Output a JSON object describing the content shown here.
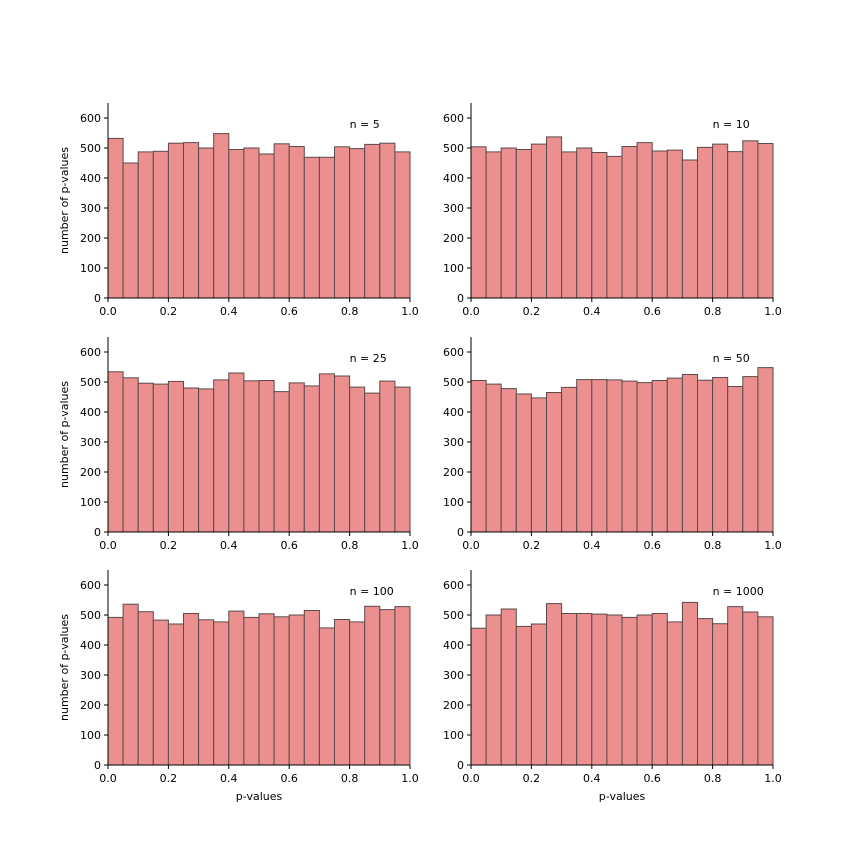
{
  "colors": {
    "bar_fill": "#ec8f8f",
    "bar_edge": "#5a4a4a"
  },
  "chart_data": [
    {
      "type": "bar",
      "annotation": "n = 5",
      "xlabel": "",
      "ylabel": "number of p-values",
      "xlim": [
        0,
        1
      ],
      "ylim": [
        0,
        650
      ],
      "xticks": [
        "0.0",
        "0.2",
        "0.4",
        "0.6",
        "0.8",
        "1.0"
      ],
      "yticks": [
        "0",
        "100",
        "200",
        "300",
        "400",
        "500",
        "600"
      ],
      "bin_edges": [
        0,
        0.05,
        0.1,
        0.15,
        0.2,
        0.25,
        0.3,
        0.35,
        0.4,
        0.45,
        0.5,
        0.55,
        0.6,
        0.65,
        0.7,
        0.75,
        0.8,
        0.85,
        0.9,
        0.95,
        1.0
      ],
      "values": [
        532,
        450,
        487,
        489,
        516,
        518,
        500,
        548,
        495,
        500,
        480,
        514,
        505,
        469,
        469,
        504,
        498,
        512,
        516,
        487
      ]
    },
    {
      "type": "bar",
      "annotation": "n = 10",
      "xlabel": "",
      "ylabel": "",
      "xlim": [
        0,
        1
      ],
      "ylim": [
        0,
        650
      ],
      "xticks": [
        "0.0",
        "0.2",
        "0.4",
        "0.6",
        "0.8",
        "1.0"
      ],
      "yticks": [
        "0",
        "100",
        "200",
        "300",
        "400",
        "500",
        "600"
      ],
      "bin_edges": [
        0,
        0.05,
        0.1,
        0.15,
        0.2,
        0.25,
        0.3,
        0.35,
        0.4,
        0.45,
        0.5,
        0.55,
        0.6,
        0.65,
        0.7,
        0.75,
        0.8,
        0.85,
        0.9,
        0.95,
        1.0
      ],
      "values": [
        504,
        487,
        500,
        495,
        513,
        537,
        487,
        500,
        485,
        472,
        505,
        518,
        490,
        493,
        460,
        502,
        513,
        488,
        524,
        515
      ]
    },
    {
      "type": "bar",
      "annotation": "n = 25",
      "xlabel": "",
      "ylabel": "number of p-values",
      "xlim": [
        0,
        1
      ],
      "ylim": [
        0,
        650
      ],
      "xticks": [
        "0.0",
        "0.2",
        "0.4",
        "0.6",
        "0.8",
        "1.0"
      ],
      "yticks": [
        "0",
        "100",
        "200",
        "300",
        "400",
        "500",
        "600"
      ],
      "bin_edges": [
        0,
        0.05,
        0.1,
        0.15,
        0.2,
        0.25,
        0.3,
        0.35,
        0.4,
        0.45,
        0.5,
        0.55,
        0.6,
        0.65,
        0.7,
        0.75,
        0.8,
        0.85,
        0.9,
        0.95,
        1.0
      ],
      "values": [
        534,
        514,
        496,
        493,
        502,
        480,
        477,
        507,
        530,
        504,
        505,
        468,
        497,
        487,
        527,
        520,
        483,
        463,
        503,
        483
      ]
    },
    {
      "type": "bar",
      "annotation": "n = 50",
      "xlabel": "",
      "ylabel": "",
      "xlim": [
        0,
        1
      ],
      "ylim": [
        0,
        650
      ],
      "xticks": [
        "0.0",
        "0.2",
        "0.4",
        "0.6",
        "0.8",
        "1.0"
      ],
      "yticks": [
        "0",
        "100",
        "200",
        "300",
        "400",
        "500",
        "600"
      ],
      "bin_edges": [
        0,
        0.05,
        0.1,
        0.15,
        0.2,
        0.25,
        0.3,
        0.35,
        0.4,
        0.45,
        0.5,
        0.55,
        0.6,
        0.65,
        0.7,
        0.75,
        0.8,
        0.85,
        0.9,
        0.95,
        1.0
      ],
      "values": [
        505,
        493,
        478,
        460,
        447,
        465,
        482,
        508,
        508,
        507,
        503,
        498,
        505,
        513,
        525,
        506,
        515,
        485,
        518,
        548
      ]
    },
    {
      "type": "bar",
      "annotation": "n = 100",
      "xlabel": "p-values",
      "ylabel": "number of p-values",
      "xlim": [
        0,
        1
      ],
      "ylim": [
        0,
        650
      ],
      "xticks": [
        "0.0",
        "0.2",
        "0.4",
        "0.6",
        "0.8",
        "1.0"
      ],
      "yticks": [
        "0",
        "100",
        "200",
        "300",
        "400",
        "500",
        "600"
      ],
      "bin_edges": [
        0,
        0.05,
        0.1,
        0.15,
        0.2,
        0.25,
        0.3,
        0.35,
        0.4,
        0.45,
        0.5,
        0.55,
        0.6,
        0.65,
        0.7,
        0.75,
        0.8,
        0.85,
        0.9,
        0.95,
        1.0
      ],
      "values": [
        492,
        536,
        511,
        483,
        470,
        505,
        484,
        477,
        513,
        492,
        504,
        494,
        500,
        515,
        457,
        485,
        477,
        529,
        518,
        528
      ]
    },
    {
      "type": "bar",
      "annotation": "n = 1000",
      "xlabel": "p-values",
      "ylabel": "",
      "xlim": [
        0,
        1
      ],
      "ylim": [
        0,
        650
      ],
      "xticks": [
        "0.0",
        "0.2",
        "0.4",
        "0.6",
        "0.8",
        "1.0"
      ],
      "yticks": [
        "0",
        "100",
        "200",
        "300",
        "400",
        "500",
        "600"
      ],
      "bin_edges": [
        0,
        0.05,
        0.1,
        0.15,
        0.2,
        0.25,
        0.3,
        0.35,
        0.4,
        0.45,
        0.5,
        0.55,
        0.6,
        0.65,
        0.7,
        0.75,
        0.8,
        0.85,
        0.9,
        0.95,
        1.0
      ],
      "values": [
        456,
        500,
        520,
        462,
        470,
        538,
        505,
        505,
        503,
        500,
        492,
        500,
        505,
        477,
        542,
        488,
        471,
        528,
        510,
        494
      ]
    }
  ]
}
